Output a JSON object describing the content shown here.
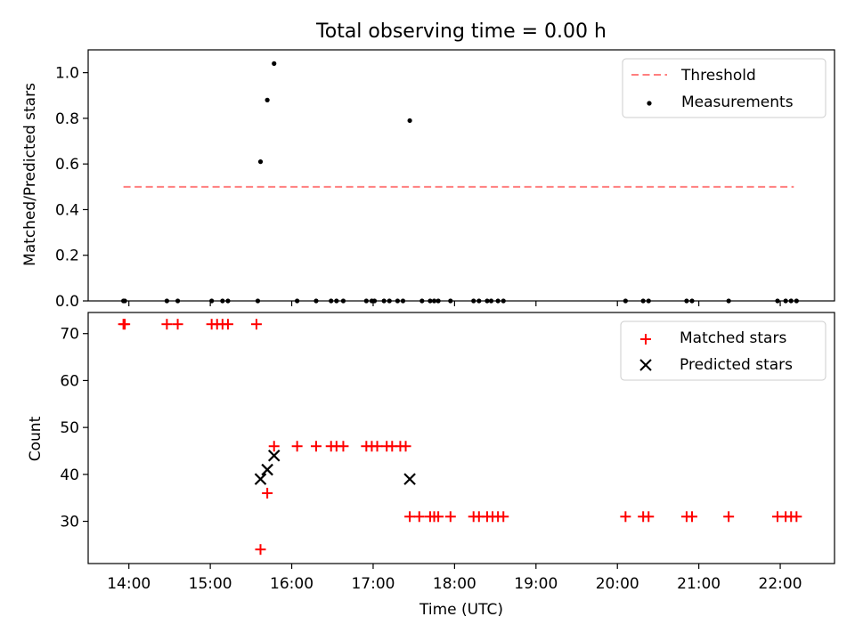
{
  "chart_data": [
    {
      "type": "scatter",
      "title": "Total observing time = 0.00 h",
      "xlabel": "",
      "ylabel": "Matched/Predicted stars",
      "xlim": [
        "13:30",
        "22:40"
      ],
      "ylim": [
        0,
        1.1
      ],
      "yticks": [
        "0.0",
        "0.2",
        "0.4",
        "0.6",
        "0.8",
        "1.0"
      ],
      "grid": false,
      "legend": "top-right",
      "threshold": {
        "name": "Threshold",
        "color": "#ff7f7f",
        "x": [
          "13:56",
          "22:10"
        ],
        "y": 0.5
      },
      "series": [
        {
          "name": "Measurements",
          "color": "#000000",
          "points": [
            [
              "13:56",
              0
            ],
            [
              "13:57",
              0
            ],
            [
              "14:28",
              0
            ],
            [
              "14:36",
              0
            ],
            [
              "15:01",
              0
            ],
            [
              "15:09",
              0
            ],
            [
              "15:13",
              0
            ],
            [
              "15:35",
              0
            ],
            [
              "15:37",
              0.61
            ],
            [
              "15:42",
              0.88
            ],
            [
              "15:47",
              1.04
            ],
            [
              "16:04",
              0
            ],
            [
              "16:18",
              0
            ],
            [
              "16:29",
              0
            ],
            [
              "16:33",
              0
            ],
            [
              "16:38",
              0
            ],
            [
              "16:55",
              0
            ],
            [
              "16:59",
              0
            ],
            [
              "17:01",
              0
            ],
            [
              "17:08",
              0
            ],
            [
              "17:12",
              0
            ],
            [
              "17:18",
              0
            ],
            [
              "17:22",
              0
            ],
            [
              "17:27",
              0.79
            ],
            [
              "17:36",
              0
            ],
            [
              "17:42",
              0
            ],
            [
              "17:45",
              0
            ],
            [
              "17:48",
              0
            ],
            [
              "17:57",
              0
            ],
            [
              "18:14",
              0
            ],
            [
              "18:18",
              0
            ],
            [
              "18:24",
              0
            ],
            [
              "18:27",
              0
            ],
            [
              "18:32",
              0
            ],
            [
              "18:36",
              0
            ],
            [
              "20:06",
              0
            ],
            [
              "20:19",
              0
            ],
            [
              "20:23",
              0
            ],
            [
              "20:51",
              0
            ],
            [
              "20:55",
              0
            ],
            [
              "21:22",
              0
            ],
            [
              "21:58",
              0
            ],
            [
              "22:04",
              0
            ],
            [
              "22:08",
              0
            ],
            [
              "22:12",
              0
            ]
          ]
        }
      ]
    },
    {
      "type": "scatter",
      "title": "",
      "xlabel": "Time (UTC)",
      "ylabel": "Count",
      "xlim": [
        "13:30",
        "22:40"
      ],
      "ylim": [
        21,
        74.5
      ],
      "yticks": [
        "30",
        "40",
        "50",
        "60",
        "70"
      ],
      "xticks": [
        "14:00",
        "15:00",
        "16:00",
        "17:00",
        "18:00",
        "19:00",
        "20:00",
        "21:00",
        "22:00"
      ],
      "grid": false,
      "legend": "top-right",
      "series": [
        {
          "name": "Matched stars",
          "color": "#ff0000",
          "marker": "+",
          "points": [
            [
              "13:56",
              72
            ],
            [
              "13:57",
              72
            ],
            [
              "14:28",
              72
            ],
            [
              "14:36",
              72
            ],
            [
              "15:01",
              72
            ],
            [
              "15:05",
              72
            ],
            [
              "15:09",
              72
            ],
            [
              "15:13",
              72
            ],
            [
              "15:34",
              72
            ],
            [
              "15:37",
              24
            ],
            [
              "15:42",
              36
            ],
            [
              "15:47",
              46
            ],
            [
              "16:04",
              46
            ],
            [
              "16:18",
              46
            ],
            [
              "16:29",
              46
            ],
            [
              "16:33",
              46
            ],
            [
              "16:38",
              46
            ],
            [
              "16:55",
              46
            ],
            [
              "16:59",
              46
            ],
            [
              "17:03",
              46
            ],
            [
              "17:10",
              46
            ],
            [
              "17:14",
              46
            ],
            [
              "17:20",
              46
            ],
            [
              "17:24",
              46
            ],
            [
              "17:27",
              31
            ],
            [
              "17:34",
              31
            ],
            [
              "17:42",
              31
            ],
            [
              "17:45",
              31
            ],
            [
              "17:48",
              31
            ],
            [
              "17:57",
              31
            ],
            [
              "18:14",
              31
            ],
            [
              "18:18",
              31
            ],
            [
              "18:24",
              31
            ],
            [
              "18:28",
              31
            ],
            [
              "18:32",
              31
            ],
            [
              "18:36",
              31
            ],
            [
              "20:06",
              31
            ],
            [
              "20:19",
              31
            ],
            [
              "20:23",
              31
            ],
            [
              "20:51",
              31
            ],
            [
              "20:55",
              31
            ],
            [
              "21:22",
              31
            ],
            [
              "21:58",
              31
            ],
            [
              "22:04",
              31
            ],
            [
              "22:08",
              31
            ],
            [
              "22:12",
              31
            ]
          ]
        },
        {
          "name": "Predicted stars",
          "color": "#000000",
          "marker": "x",
          "points": [
            [
              "15:37",
              39
            ],
            [
              "15:42",
              41
            ],
            [
              "15:47",
              44
            ],
            [
              "17:27",
              39
            ]
          ]
        }
      ]
    }
  ]
}
